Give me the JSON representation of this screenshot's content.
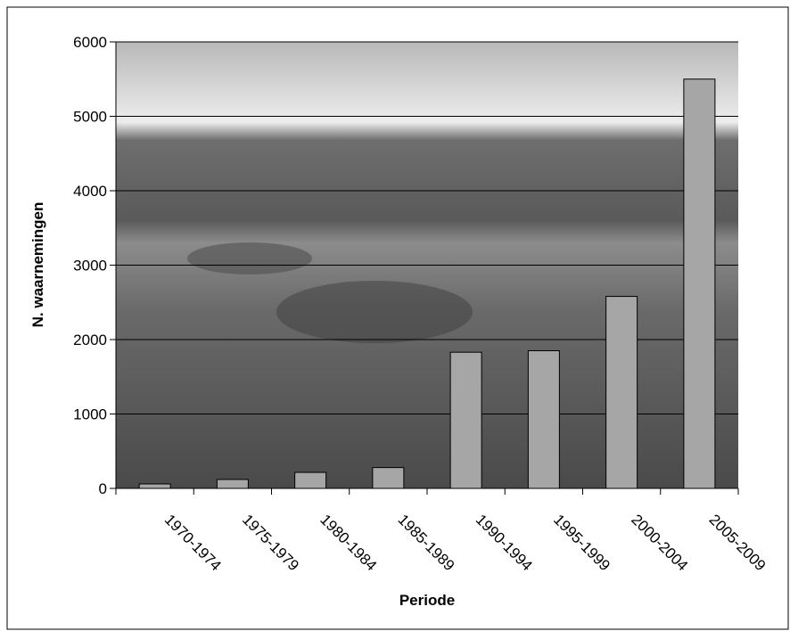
{
  "chart_data": {
    "type": "bar",
    "x_label": "Periode",
    "y_label": "N. waarnemingen",
    "categories": [
      "1970-1974",
      "1975-1979",
      "1980-1984",
      "1985-1989",
      "1990-1994",
      "1995-1999",
      "2000-2004",
      "2005-2009"
    ],
    "values": [
      60,
      120,
      215,
      280,
      1830,
      1850,
      2580,
      5500
    ],
    "color": "#a6a6a6",
    "ylim": [
      0,
      6000
    ],
    "yticks": [
      0,
      1000,
      2000,
      3000,
      4000,
      5000,
      6000
    ],
    "grid": true
  }
}
